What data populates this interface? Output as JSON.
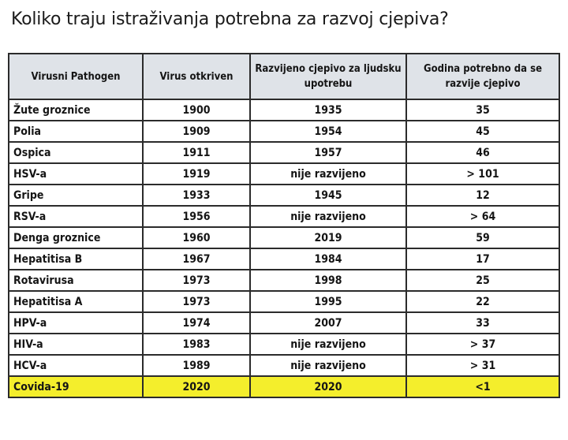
{
  "title": "Koliko traju istraživanja potrebna za razvoj cjepiva?",
  "table": {
    "headers": [
      "Virusni Pathogen",
      "Virus otkriven",
      "Razvijeno cjepivo za ljudsku upotrebu",
      "Godina potrebno da se razvije cjepivo"
    ],
    "rows": [
      [
        "Žute groznice",
        "1900",
        "1935",
        "35"
      ],
      [
        "Polia",
        "1909",
        "1954",
        "45"
      ],
      [
        "Ospica",
        "1911",
        "1957",
        "46"
      ],
      [
        "HSV-a",
        "1919",
        "nije razvijeno",
        "> 101"
      ],
      [
        "Gripe",
        "1933",
        "1945",
        "12"
      ],
      [
        "RSV-a",
        "1956",
        "nije razvijeno",
        "> 64"
      ],
      [
        "Denga groznice",
        "1960",
        "2019",
        "59"
      ],
      [
        "Hepatitisa B",
        "1967",
        "1984",
        "17"
      ],
      [
        "Rotavirusa",
        "1973",
        "1998",
        "25"
      ],
      [
        "Hepatitisa A",
        "1973",
        "1995",
        "22"
      ],
      [
        "HPV-a",
        "1974",
        "2007",
        "33"
      ],
      [
        "HIV-a",
        "1983",
        "nije razvijeno",
        "> 37"
      ],
      [
        "HCV-a",
        "1989",
        "nije razvijeno",
        "> 31"
      ],
      [
        "Covida-19",
        "2020",
        "2020",
        "<1"
      ]
    ],
    "highlight_row": 13,
    "highlight_color": "#f4ee2c",
    "header_color": "#dfe3e8"
  }
}
